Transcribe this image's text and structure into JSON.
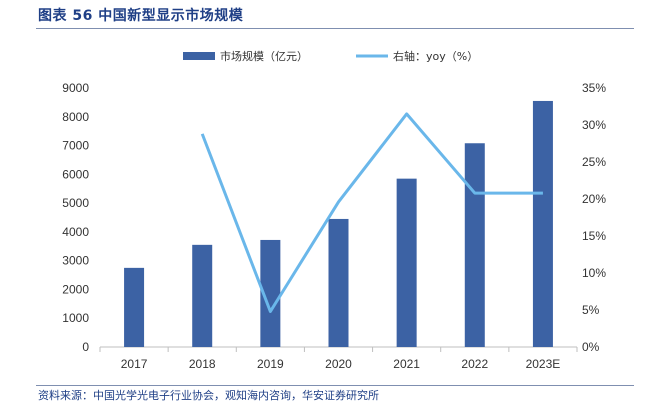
{
  "figure": {
    "title": "图表 56 中国新型显示市场规模",
    "source": "资料来源：中国光学光电子行业协会，观知海内咨询，华安证券研究所"
  },
  "colors": {
    "bar": "#3c62a4",
    "line": "#6ab7ea",
    "title": "#1f3f86",
    "axis": "#bfbfbf",
    "text": "#333333"
  },
  "chart_data": {
    "type": "bar",
    "categories": [
      "2017",
      "2018",
      "2019",
      "2020",
      "2021",
      "2022",
      "2023E"
    ],
    "series": [
      {
        "name": "市场规模（亿元）",
        "type": "bar",
        "axis": "left",
        "values": [
          2750,
          3550,
          3720,
          4450,
          5850,
          7080,
          8550
        ]
      },
      {
        "name": "右轴：yoy（%）",
        "type": "line",
        "axis": "right",
        "values": [
          null,
          28.8,
          4.8,
          19.6,
          31.5,
          20.8,
          20.8
        ]
      }
    ],
    "left_axis": {
      "ylim": [
        0,
        9000
      ],
      "ticks": [
        "0",
        "1000",
        "2000",
        "3000",
        "4000",
        "5000",
        "6000",
        "7000",
        "8000",
        "9000"
      ]
    },
    "right_axis": {
      "ylim": [
        0,
        35
      ],
      "ticks": [
        "0%",
        "5%",
        "10%",
        "15%",
        "20%",
        "25%",
        "30%",
        "35%"
      ]
    },
    "legend": {
      "position": "top-center"
    },
    "grid": false
  }
}
